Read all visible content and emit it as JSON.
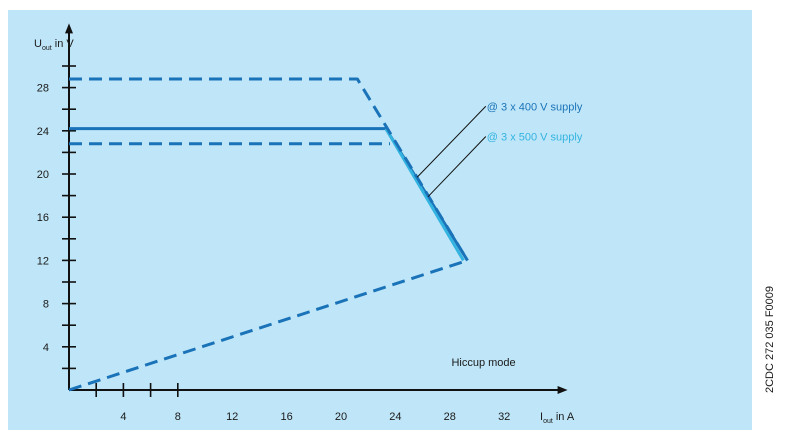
{
  "chart_data": {
    "type": "line",
    "ylabel": {
      "main": "U",
      "sub": "out",
      "unit": " in V"
    },
    "xlabel": {
      "main": "I",
      "sub": "out",
      "unit": " in A"
    },
    "xlim": [
      0,
      36
    ],
    "ylim": [
      0,
      32
    ],
    "x_ticks": [
      4,
      8,
      12,
      16,
      20,
      24,
      28,
      32
    ],
    "x_minor_ticks": [
      2,
      6
    ],
    "y_ticks": [
      4,
      8,
      12,
      16,
      20,
      24,
      28
    ],
    "y_minor_ticks": [
      2,
      6,
      10,
      14,
      18,
      22,
      26,
      30
    ],
    "series": [
      {
        "label": "@ 3 x 400 V supply",
        "color": "#1a73b8",
        "style": "solid",
        "points": [
          [
            0,
            24.2
          ],
          [
            23.3,
            24.2
          ],
          [
            29.3,
            12
          ]
        ]
      },
      {
        "label": "@ 3 x 500 V supply",
        "color": "#33b3e0",
        "style": "solid",
        "points": [
          [
            23.3,
            24.2
          ],
          [
            29.0,
            12
          ]
        ]
      },
      {
        "color": "#1a73b8",
        "style": "dashed",
        "points": [
          [
            0,
            28.8
          ],
          [
            21.2,
            28.8
          ],
          [
            29.3,
            12
          ]
        ]
      },
      {
        "color": "#1a73b8",
        "style": "dashed",
        "points": [
          [
            0,
            22.8
          ],
          [
            23.6,
            22.8
          ]
        ]
      },
      {
        "color": "#1a73b8",
        "style": "dashed",
        "points": [
          [
            0,
            0
          ],
          [
            29.3,
            12
          ]
        ]
      }
    ],
    "annotations": [
      {
        "text": "@ 3 x 400 V supply",
        "color": "#1a73b8",
        "label_at": [
          30.5,
          25.9
        ],
        "pointer_to": [
          25.6,
          19.7
        ]
      },
      {
        "text": "@ 3 x 500 V supply",
        "color": "#33b3e0",
        "label_at": [
          30.5,
          23.1
        ],
        "pointer_to": [
          26.4,
          17.9
        ]
      },
      {
        "text": "Hiccup mode",
        "color": "#1a1a1a",
        "label_at": [
          27.9,
          2.2
        ]
      }
    ]
  },
  "side_code": "2CDC 272 035 F0009"
}
